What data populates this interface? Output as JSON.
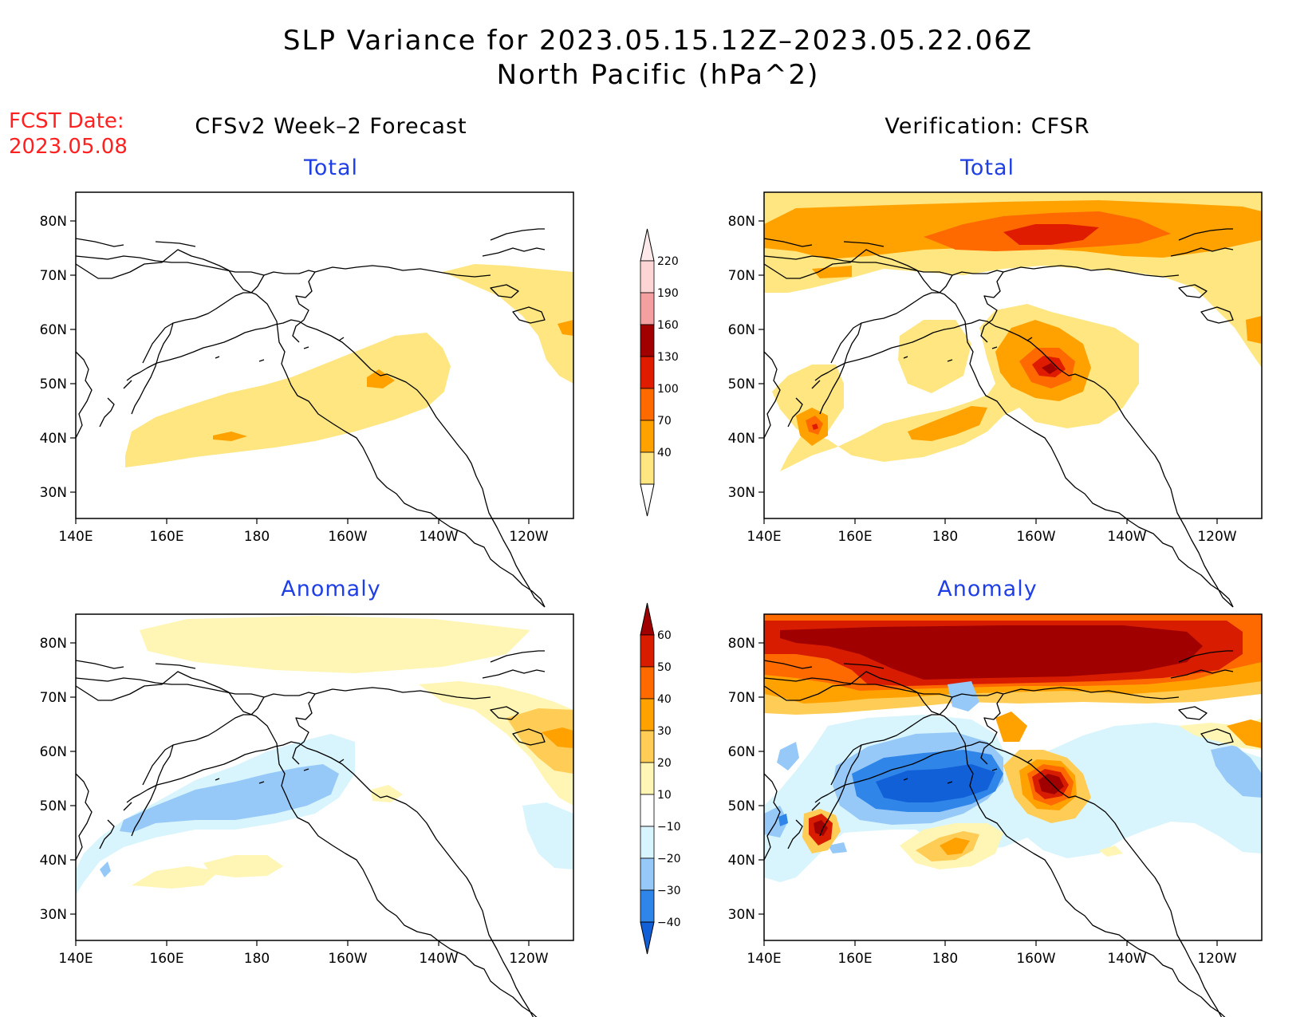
{
  "title": {
    "line1": "SLP Variance for 2023.05.15.12Z–2023.05.22.06Z",
    "line2": "North Pacific (hPa^2)"
  },
  "fcst_date": {
    "label": "FCST Date:",
    "value": "2023.05.08",
    "color": "#ff2020"
  },
  "column_headers": {
    "left": "CFSv2 Week–2 Forecast",
    "right": "Verification: CFSR"
  },
  "panel_titles": {
    "total": "Total",
    "anomaly": "Anomaly",
    "color": "#1f3fe6"
  },
  "axes": {
    "lon_labels": [
      "140E",
      "160E",
      "180",
      "160W",
      "140W",
      "120W"
    ],
    "lat_labels": [
      "80N",
      "70N",
      "60N",
      "50N",
      "40N",
      "30N"
    ]
  },
  "colorbars": {
    "total": {
      "labels": [
        "40",
        "70",
        "100",
        "130",
        "160",
        "190",
        "220"
      ],
      "colors": [
        "#ffe680",
        "#ffa200",
        "#ff6a00",
        "#e01c00",
        "#a00000",
        "#f5a0a0",
        "#fdd5d5"
      ]
    },
    "anomaly": {
      "labels": [
        "−40",
        "−30",
        "−20",
        "−10",
        "10",
        "20",
        "30",
        "40",
        "50",
        "60"
      ],
      "colors": [
        "#1160d8",
        "#2f85e8",
        "#97c9f8",
        "#d8f4fc",
        "#ffffff",
        "#fff5b4",
        "#ffcc55",
        "#ffa200",
        "#ff6a00",
        "#d81c00",
        "#a00000"
      ]
    }
  },
  "panels": [
    {
      "id": "forecast-total",
      "column": "left",
      "row": "total"
    },
    {
      "id": "verification-total",
      "column": "right",
      "row": "total"
    },
    {
      "id": "forecast-anomaly",
      "column": "left",
      "row": "anomaly"
    },
    {
      "id": "verification-anomaly",
      "column": "right",
      "row": "anomaly"
    }
  ]
}
